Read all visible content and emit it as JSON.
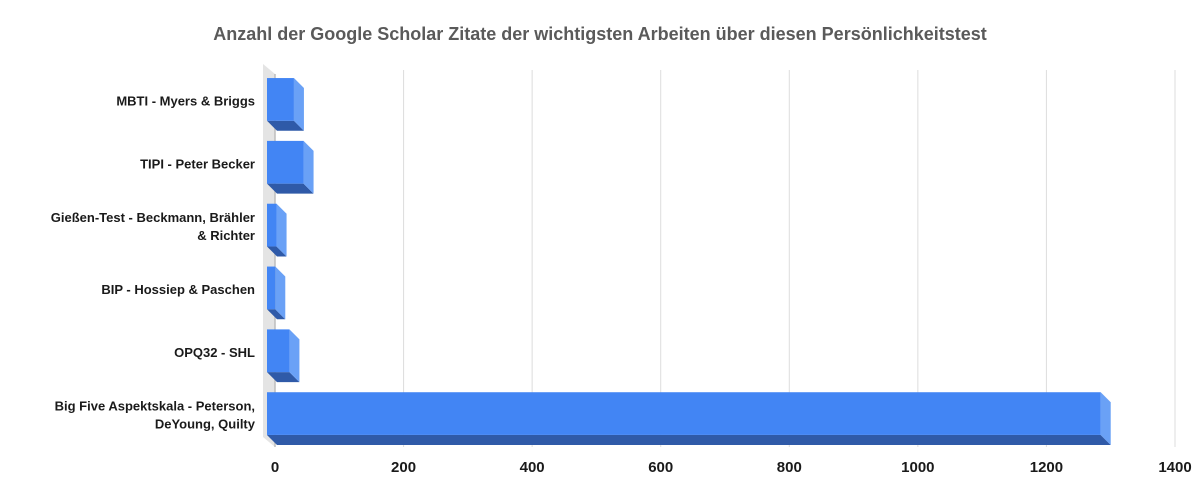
{
  "chart_data": {
    "type": "bar",
    "orientation": "horizontal",
    "style": "3d",
    "title": "Anzahl der Google Scholar Zitate der wichtigsten Arbeiten über diesen Persönlichkeitstest",
    "categories": [
      [
        "MBTI - Myers & Briggs"
      ],
      [
        "TIPI - Peter Becker"
      ],
      [
        "Gießen-Test - Beckmann, Brähler",
        "& Richter"
      ],
      [
        "BIP - Hossiep & Paschen"
      ],
      [
        "OPQ32 - SHL"
      ],
      [
        "Big Five Aspektskala - Peterson,",
        "DeYoung, Quilty"
      ]
    ],
    "values": [
      45,
      60,
      18,
      16,
      38,
      1300
    ],
    "xlim": [
      0,
      1400
    ],
    "xticks": [
      0,
      200,
      400,
      600,
      800,
      1000,
      1200,
      1400
    ],
    "grid": true,
    "legend": "none",
    "colors": {
      "bar_front": "#4285f4",
      "bar_side": "#6aa1f6",
      "bar_bottom": "#2f5aa8",
      "grid": "#dddddd",
      "wall": "#e4e4e4",
      "axis": "#bdbdbd"
    }
  }
}
